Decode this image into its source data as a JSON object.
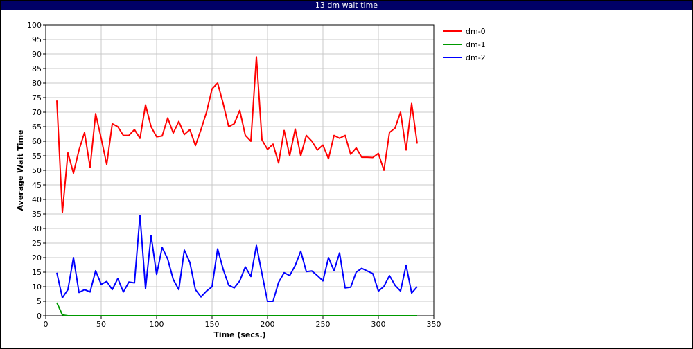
{
  "window": {
    "title": "13 dm wait time"
  },
  "chart_data": {
    "type": "line",
    "xlabel": "Time (secs.)",
    "ylabel": "Average Wait Time",
    "xlim": [
      0,
      350
    ],
    "ylim": [
      0,
      100
    ],
    "xticks": [
      0,
      50,
      100,
      150,
      200,
      250,
      300,
      350
    ],
    "yticks": [
      0,
      5,
      10,
      15,
      20,
      25,
      30,
      35,
      40,
      45,
      50,
      55,
      60,
      65,
      70,
      75,
      80,
      85,
      90,
      95,
      100
    ],
    "grid": true,
    "legend_position": "right",
    "series": [
      {
        "name": "dm-0",
        "color": "#ff0000",
        "x": [
          10,
          15,
          20,
          25,
          30,
          35,
          40,
          45,
          50,
          55,
          60,
          65,
          70,
          75,
          80,
          85,
          90,
          95,
          100,
          105,
          110,
          115,
          120,
          125,
          130,
          135,
          140,
          145,
          150,
          155,
          160,
          165,
          170,
          175,
          180,
          185,
          190,
          195,
          200,
          205,
          210,
          215,
          220,
          225,
          230,
          235,
          240,
          245,
          250,
          255,
          260,
          265,
          270,
          275,
          280,
          285,
          290,
          295,
          300,
          305,
          310,
          315,
          320,
          325,
          330,
          335
        ],
        "y": [
          74,
          35.5,
          56,
          49,
          57,
          63,
          51,
          69.5,
          61,
          52,
          66,
          65,
          62,
          62,
          64,
          61,
          72.5,
          65,
          61.5,
          61.8,
          68,
          62.8,
          66.8,
          62.3,
          64,
          58.5,
          64,
          70,
          78,
          80,
          73,
          65,
          66,
          70.6,
          62,
          60,
          89,
          60.5,
          57.2,
          59,
          52.5,
          63.7,
          55,
          64.2,
          55,
          62,
          60,
          57,
          58.7,
          54,
          62,
          61,
          62,
          55.5,
          57.7,
          54.5,
          54.5,
          54.4,
          55.8,
          50,
          63,
          64.5,
          70,
          57,
          73,
          59.2
        ]
      },
      {
        "name": "dm-1",
        "color": "#009900",
        "x": [
          10,
          15,
          20,
          25,
          30,
          35,
          40,
          45,
          50,
          55,
          60,
          65,
          70,
          75,
          80,
          85,
          90,
          95,
          100,
          105,
          110,
          115,
          120,
          125,
          130,
          135,
          140,
          145,
          150,
          155,
          160,
          165,
          170,
          175,
          180,
          185,
          190,
          195,
          200,
          205,
          210,
          215,
          220,
          225,
          230,
          235,
          240,
          245,
          250,
          255,
          260,
          265,
          270,
          275,
          280,
          285,
          290,
          295,
          300,
          305,
          310,
          315,
          320,
          325,
          330,
          335
        ],
        "y": [
          4.5,
          0.3,
          0,
          0,
          0,
          0,
          0,
          0,
          0,
          0,
          0,
          0,
          0,
          0,
          0,
          0,
          0,
          0,
          0,
          0,
          0,
          0,
          0,
          0,
          0,
          0,
          0,
          0,
          0,
          0,
          0,
          0,
          0,
          0,
          0,
          0,
          0,
          0,
          0,
          0,
          0,
          0,
          0,
          0,
          0,
          0,
          0,
          0,
          0,
          0,
          0,
          0,
          0,
          0,
          0,
          0,
          0,
          0,
          0,
          0,
          0,
          0,
          0,
          0,
          0,
          0
        ]
      },
      {
        "name": "dm-2",
        "color": "#0000ff",
        "x": [
          10,
          15,
          20,
          25,
          30,
          35,
          40,
          45,
          50,
          55,
          60,
          65,
          70,
          75,
          80,
          85,
          90,
          95,
          100,
          105,
          110,
          115,
          120,
          125,
          130,
          135,
          140,
          145,
          150,
          155,
          160,
          165,
          170,
          175,
          180,
          185,
          190,
          195,
          200,
          205,
          210,
          215,
          220,
          225,
          230,
          235,
          240,
          245,
          250,
          255,
          260,
          265,
          270,
          275,
          280,
          285,
          290,
          295,
          300,
          305,
          310,
          315,
          320,
          325,
          330,
          335
        ],
        "y": [
          14.8,
          6.2,
          9,
          20,
          8,
          9,
          8.2,
          15.5,
          10.8,
          11.8,
          9,
          12.8,
          8.2,
          11.6,
          11.3,
          34.5,
          9.3,
          27.6,
          14.2,
          23.5,
          19.5,
          12.5,
          9,
          22.6,
          18.3,
          9,
          6.5,
          8.5,
          10,
          23,
          16,
          10.5,
          9.6,
          12,
          16.8,
          13.5,
          24.2,
          14.5,
          5,
          5,
          11.5,
          14.8,
          13.8,
          17.3,
          22.2,
          15.2,
          15.4,
          13.8,
          12,
          20,
          15.5,
          21.6,
          9.6,
          9.8,
          15,
          16.3,
          15.4,
          14.5,
          8.5,
          10.1,
          13.8,
          10.5,
          8.5,
          17.4,
          7.8,
          10
        ]
      }
    ]
  }
}
